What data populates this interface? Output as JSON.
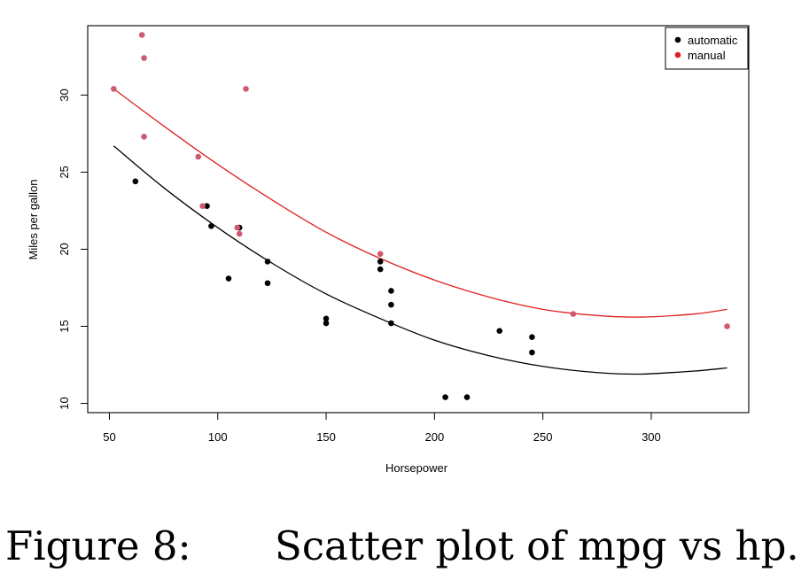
{
  "chart_data": {
    "type": "scatter",
    "title": "",
    "xlabel": "Horsepower",
    "ylabel": "Miles per gallon",
    "xlim": [
      40,
      345
    ],
    "ylim": [
      9.4,
      34.5
    ],
    "xticks": [
      50,
      100,
      150,
      200,
      250,
      300
    ],
    "yticks": [
      10,
      15,
      20,
      25,
      30
    ],
    "grid": false,
    "legend_position": "top-right",
    "series": [
      {
        "name": "automatic",
        "color": "#000000",
        "points": [
          [
            62,
            24.4
          ],
          [
            95,
            22.8
          ],
          [
            97,
            21.5
          ],
          [
            105,
            18.1
          ],
          [
            110,
            21.4
          ],
          [
            123,
            19.2
          ],
          [
            123,
            17.8
          ],
          [
            150,
            15.5
          ],
          [
            150,
            15.2
          ],
          [
            175,
            19.2
          ],
          [
            175,
            18.7
          ],
          [
            180,
            17.3
          ],
          [
            180,
            16.4
          ],
          [
            180,
            15.2
          ],
          [
            205,
            10.4
          ],
          [
            215,
            10.4
          ],
          [
            230,
            14.7
          ],
          [
            245,
            14.3
          ],
          [
            245,
            13.3
          ]
        ],
        "fit_curve": {
          "color": "#000000",
          "points": [
            [
              52,
              26.7
            ],
            [
              75,
              24.0
            ],
            [
              100,
              21.4
            ],
            [
              125,
              19.1
            ],
            [
              150,
              17.1
            ],
            [
              175,
              15.5
            ],
            [
              200,
              14.1
            ],
            [
              225,
              13.1
            ],
            [
              250,
              12.4
            ],
            [
              275,
              12.0
            ],
            [
              295,
              11.9
            ],
            [
              320,
              12.1
            ],
            [
              335,
              12.3
            ]
          ]
        }
      },
      {
        "name": "manual",
        "color": "#cd5a6e",
        "points": [
          [
            52,
            30.4
          ],
          [
            65,
            33.9
          ],
          [
            66,
            32.4
          ],
          [
            66,
            27.3
          ],
          [
            91,
            26.0
          ],
          [
            93,
            22.8
          ],
          [
            109,
            21.4
          ],
          [
            110,
            21.0
          ],
          [
            113,
            30.4
          ],
          [
            175,
            19.7
          ],
          [
            264,
            15.8
          ],
          [
            335,
            15.0
          ]
        ],
        "fit_curve": {
          "color": "#e02020",
          "points": [
            [
              52,
              30.4
            ],
            [
              75,
              28.0
            ],
            [
              100,
              25.5
            ],
            [
              125,
              23.2
            ],
            [
              150,
              21.1
            ],
            [
              175,
              19.4
            ],
            [
              200,
              18.0
            ],
            [
              225,
              16.9
            ],
            [
              250,
              16.1
            ],
            [
              275,
              15.7
            ],
            [
              295,
              15.6
            ],
            [
              320,
              15.8
            ],
            [
              335,
              16.1
            ]
          ]
        }
      }
    ],
    "legend_entries": [
      {
        "label": "automatic",
        "color": "#000000"
      },
      {
        "label": "manual",
        "color": "#e02020"
      }
    ]
  },
  "caption": {
    "label": "Figure 8:",
    "text": "Scatter plot of mpg vs hp."
  }
}
